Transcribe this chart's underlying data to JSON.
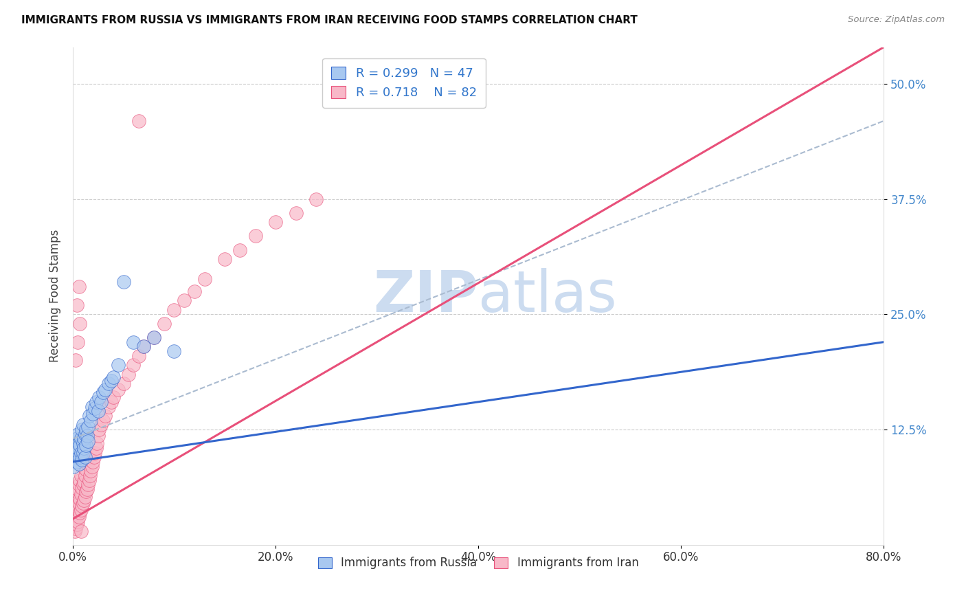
{
  "title": "IMMIGRANTS FROM RUSSIA VS IMMIGRANTS FROM IRAN RECEIVING FOOD STAMPS CORRELATION CHART",
  "source": "Source: ZipAtlas.com",
  "xlabel_ticks": [
    "0.0%",
    "20.0%",
    "40.0%",
    "60.0%",
    "80.0%"
  ],
  "ylabel_ticks": [
    "12.5%",
    "25.0%",
    "37.5%",
    "50.0%"
  ],
  "xlabel_tick_vals": [
    0.0,
    0.2,
    0.4,
    0.6,
    0.8
  ],
  "ylabel_tick_vals": [
    0.125,
    0.25,
    0.375,
    0.5
  ],
  "ylabel_label": "Receiving Food Stamps",
  "legend_russia": "Immigrants from Russia",
  "legend_iran": "Immigrants from Iran",
  "R_russia": "0.299",
  "N_russia": "47",
  "R_iran": "0.718",
  "N_iran": "82",
  "russia_color": "#a8c8f0",
  "iran_color": "#f8b8c8",
  "russia_line_color": "#3366cc",
  "iran_line_color": "#e8507a",
  "watermark_color": "#ccdcf0",
  "xlim": [
    0.0,
    0.8
  ],
  "ylim": [
    0.0,
    0.54
  ],
  "russia_scatter_x": [
    0.001,
    0.002,
    0.003,
    0.004,
    0.004,
    0.005,
    0.005,
    0.006,
    0.006,
    0.007,
    0.007,
    0.008,
    0.008,
    0.009,
    0.009,
    0.01,
    0.01,
    0.01,
    0.011,
    0.011,
    0.012,
    0.012,
    0.013,
    0.013,
    0.014,
    0.015,
    0.015,
    0.016,
    0.018,
    0.019,
    0.02,
    0.022,
    0.023,
    0.025,
    0.026,
    0.028,
    0.03,
    0.032,
    0.035,
    0.038,
    0.04,
    0.045,
    0.05,
    0.06,
    0.07,
    0.08,
    0.1
  ],
  "russia_scatter_y": [
    0.085,
    0.095,
    0.1,
    0.09,
    0.115,
    0.105,
    0.12,
    0.088,
    0.11,
    0.095,
    0.108,
    0.1,
    0.115,
    0.092,
    0.125,
    0.1,
    0.11,
    0.13,
    0.105,
    0.115,
    0.095,
    0.12,
    0.108,
    0.125,
    0.118,
    0.112,
    0.128,
    0.14,
    0.135,
    0.15,
    0.142,
    0.148,
    0.155,
    0.145,
    0.16,
    0.155,
    0.165,
    0.168,
    0.175,
    0.178,
    0.182,
    0.195,
    0.285,
    0.22,
    0.215,
    0.225,
    0.21
  ],
  "iran_scatter_x": [
    0.001,
    0.001,
    0.002,
    0.002,
    0.002,
    0.003,
    0.003,
    0.003,
    0.004,
    0.004,
    0.004,
    0.005,
    0.005,
    0.005,
    0.006,
    0.006,
    0.006,
    0.007,
    0.007,
    0.007,
    0.008,
    0.008,
    0.008,
    0.009,
    0.009,
    0.01,
    0.01,
    0.01,
    0.011,
    0.011,
    0.011,
    0.012,
    0.012,
    0.013,
    0.013,
    0.014,
    0.014,
    0.015,
    0.015,
    0.016,
    0.016,
    0.017,
    0.018,
    0.019,
    0.02,
    0.021,
    0.022,
    0.023,
    0.024,
    0.025,
    0.026,
    0.028,
    0.03,
    0.032,
    0.035,
    0.038,
    0.04,
    0.045,
    0.05,
    0.055,
    0.06,
    0.065,
    0.07,
    0.08,
    0.09,
    0.1,
    0.11,
    0.12,
    0.13,
    0.15,
    0.165,
    0.18,
    0.2,
    0.22,
    0.24,
    0.003,
    0.004,
    0.005,
    0.006,
    0.007,
    0.008,
    0.065
  ],
  "iran_scatter_y": [
    0.02,
    0.035,
    0.015,
    0.028,
    0.042,
    0.018,
    0.032,
    0.048,
    0.022,
    0.038,
    0.058,
    0.025,
    0.04,
    0.06,
    0.03,
    0.045,
    0.065,
    0.035,
    0.05,
    0.07,
    0.038,
    0.055,
    0.075,
    0.042,
    0.062,
    0.045,
    0.065,
    0.085,
    0.048,
    0.068,
    0.09,
    0.052,
    0.075,
    0.058,
    0.082,
    0.06,
    0.088,
    0.065,
    0.095,
    0.07,
    0.1,
    0.075,
    0.08,
    0.085,
    0.09,
    0.095,
    0.1,
    0.105,
    0.11,
    0.118,
    0.125,
    0.13,
    0.135,
    0.14,
    0.15,
    0.155,
    0.16,
    0.168,
    0.175,
    0.185,
    0.195,
    0.205,
    0.215,
    0.225,
    0.24,
    0.255,
    0.265,
    0.275,
    0.288,
    0.31,
    0.32,
    0.335,
    0.35,
    0.36,
    0.375,
    0.2,
    0.26,
    0.22,
    0.28,
    0.24,
    0.015,
    0.46
  ],
  "russia_line_x": [
    0.0,
    0.8
  ],
  "russia_line_y": [
    0.09,
    0.22
  ],
  "iran_line_x": [
    0.0,
    0.8
  ],
  "iran_line_y": [
    0.028,
    0.54
  ],
  "dashed_line_x": [
    0.0,
    0.8
  ],
  "dashed_line_y": [
    0.115,
    0.46
  ]
}
